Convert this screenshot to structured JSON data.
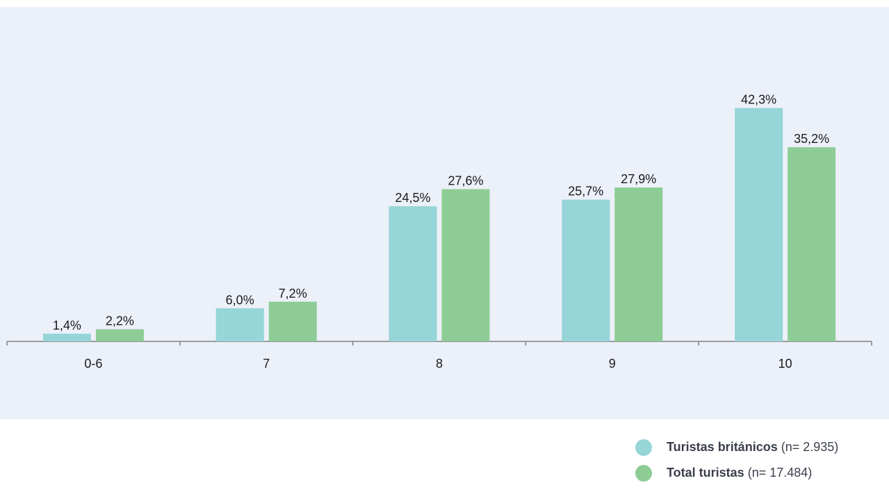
{
  "chart_data": {
    "type": "bar",
    "categories": [
      "0-6",
      "7",
      "8",
      "9",
      "10"
    ],
    "series": [
      {
        "name": "Turistas británicos",
        "note": "(n= 2.935)",
        "color": "#96d5d8",
        "values": [
          1.4,
          6.0,
          24.5,
          25.7,
          42.3
        ],
        "labels": [
          "1,4%",
          "6,0%",
          "24,5%",
          "25,7%",
          "42,3%"
        ]
      },
      {
        "name": "Total turistas",
        "note": "(n= 17.484)",
        "color": "#8dcd95",
        "values": [
          2.2,
          7.2,
          27.6,
          27.9,
          35.2
        ],
        "labels": [
          "2,2%",
          "7,2%",
          "27,6%",
          "27,9%",
          "35,2%"
        ]
      }
    ],
    "ylim": [
      0,
      50
    ],
    "grid": false,
    "legend": "bottom-right",
    "axis_color": "#7f7f7f",
    "background_color": "#ecf0f9"
  }
}
